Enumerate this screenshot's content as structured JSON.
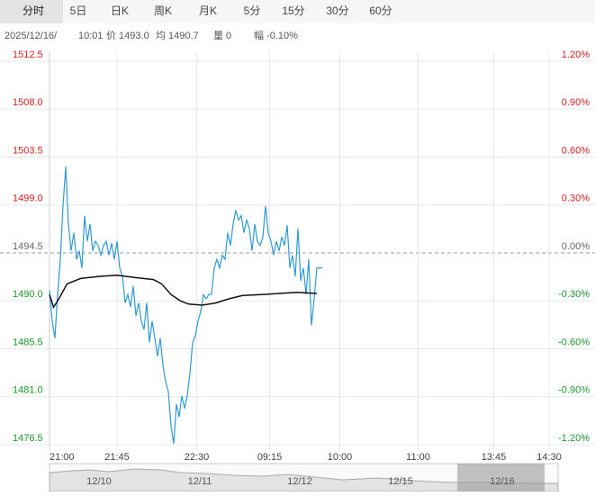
{
  "tabs": [
    "分时",
    "5日",
    "日K",
    "周K",
    "月K",
    "5分",
    "15分",
    "30分",
    "60分"
  ],
  "info": [
    "2025/12/16/",
    "10:01",
    "价 1493.0",
    "均 1490.7",
    "量 0",
    "幅 -0.10%"
  ],
  "navigator_dates": [
    "12/10",
    "12/11",
    "12/12",
    "12/15",
    "12/16"
  ],
  "chart_data": {
    "type": "line",
    "base": 1494.5,
    "xlim": [
      0,
      370
    ],
    "xticks": [
      {
        "value": 0,
        "label": "21:00"
      },
      {
        "value": 50,
        "label": "21:45"
      },
      {
        "value": 109,
        "label": "22:30"
      },
      {
        "value": 163,
        "label": "09:15"
      },
      {
        "value": 215,
        "label": "10:00"
      },
      {
        "value": 273,
        "label": "11:00"
      },
      {
        "value": 329,
        "label": "13:45"
      },
      {
        "value": 370,
        "label": "14:30"
      }
    ],
    "ylim": [
      1476.5,
      1512.5
    ],
    "yticks": [
      1476.5,
      {
        "value": 1481,
        "label": "1481.0"
      },
      1485.5,
      {
        "value": 1490,
        "label": "1490.0"
      },
      1494.5,
      {
        "value": 1499,
        "label": "1499.0"
      },
      1503.5,
      {
        "value": 1508,
        "label": "1508.0"
      },
      1512.5
    ],
    "y2lim": [
      -1.2,
      1.2
    ],
    "y2ticks": [
      {
        "value": -1.2,
        "label": "-1.20%"
      },
      {
        "value": -0.9,
        "label": "-0.90%"
      },
      {
        "value": -0.6,
        "label": "-0.60%"
      },
      {
        "value": -0.3,
        "label": "-0.30%"
      },
      {
        "value": 0,
        "label": "0.00%"
      },
      {
        "value": 0.3,
        "label": "0.30%"
      },
      {
        "value": 0.6,
        "label": "0.60%"
      },
      {
        "value": 0.9,
        "label": "0.90%"
      },
      {
        "value": 1.2,
        "label": "1.20%"
      }
    ],
    "grid": true,
    "series": [
      {
        "color": "#2e9ad6",
        "x": [
          0,
          2,
          4,
          6,
          8,
          10,
          12,
          14,
          16,
          18,
          20,
          22,
          24,
          26,
          28,
          30,
          32,
          34,
          36,
          38,
          40,
          42,
          44,
          46,
          48,
          50,
          52,
          54,
          56,
          58,
          60,
          62,
          64,
          66,
          68,
          70,
          72,
          74,
          76,
          78,
          80,
          82,
          84,
          86,
          88,
          90,
          92,
          94,
          96,
          98,
          100,
          102,
          104,
          106,
          108,
          110,
          112,
          114,
          116,
          118,
          120,
          122,
          124,
          126,
          128,
          130,
          132,
          134,
          136,
          138,
          140,
          142,
          144,
          146,
          148,
          150,
          152,
          154,
          156,
          158,
          160,
          162,
          164,
          166,
          168,
          170,
          172,
          174,
          176,
          178,
          180,
          182,
          184,
          186,
          188,
          190,
          192,
          194,
          196,
          198,
          200,
          202
        ],
        "values": [
          1491.0,
          1488.1,
          1486.5,
          1490.6,
          1493.9,
          1498.9,
          1502.6,
          1497.2,
          1494.7,
          1496.4,
          1493.9,
          1494.7,
          1493.1,
          1498.0,
          1495.6,
          1497.2,
          1494.7,
          1495.6,
          1495.2,
          1494.3,
          1495.2,
          1495.6,
          1494.3,
          1495.4,
          1493.9,
          1495.6,
          1493.1,
          1492.3,
          1489.8,
          1490.6,
          1489.4,
          1491.4,
          1488.6,
          1489.8,
          1488.1,
          1487.3,
          1489.8,
          1486.1,
          1488.1,
          1486.5,
          1484.8,
          1486.5,
          1484.0,
          1482.4,
          1481.5,
          1478.2,
          1476.6,
          1480.3,
          1479.1,
          1481.1,
          1479.9,
          1481.1,
          1483.2,
          1486.1,
          1486.7,
          1488.1,
          1489.0,
          1490.6,
          1490.2,
          1490.6,
          1490.6,
          1493.1,
          1493.9,
          1493.1,
          1494.3,
          1493.9,
          1496.4,
          1495.2,
          1497.2,
          1498.5,
          1497.6,
          1498.0,
          1496.4,
          1497.6,
          1496.8,
          1494.7,
          1497.2,
          1495.6,
          1495.2,
          1496.0,
          1498.9,
          1496.4,
          1495.6,
          1494.3,
          1495.6,
          1494.7,
          1496.0,
          1495.2,
          1497.1,
          1493.1,
          1494.3,
          1492.3,
          1496.8,
          1491.9,
          1493.1,
          1490.6,
          1493.9,
          1487.7,
          1490.2,
          1493.1,
          1493.1,
          1493.1
        ]
      },
      {
        "color": "#111111",
        "x": [
          0,
          3,
          7,
          13,
          23,
          37,
          50,
          63,
          77,
          83,
          90,
          97,
          103,
          113,
          123,
          133,
          143,
          157,
          170,
          183,
          198
        ],
        "values": [
          1490.6,
          1489.4,
          1490.2,
          1491.6,
          1492.1,
          1492.3,
          1492.4,
          1492.2,
          1492.0,
          1491.6,
          1490.6,
          1490.0,
          1489.7,
          1489.6,
          1489.8,
          1490.2,
          1490.5,
          1490.6,
          1490.7,
          1490.8,
          1490.7
        ]
      }
    ]
  }
}
